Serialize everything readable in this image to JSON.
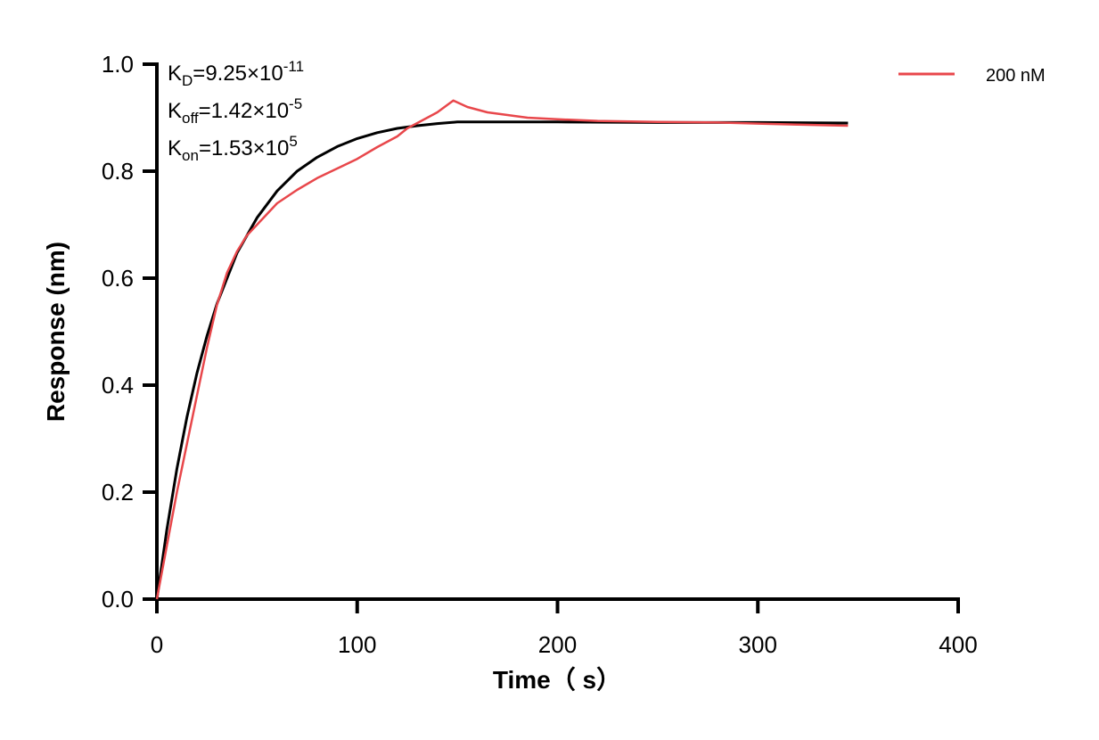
{
  "chart_data": {
    "type": "line",
    "xlabel": "Time（ s）",
    "ylabel": "Response (nm)",
    "xlim": [
      0,
      400
    ],
    "ylim": [
      0,
      1.0
    ],
    "xticks": [
      "0",
      "100",
      "200",
      "300",
      "400"
    ],
    "yticks": [
      "0.0",
      "0.2",
      "0.4",
      "0.6",
      "0.8",
      "1.0"
    ],
    "grid": false,
    "legend_position": "top-right",
    "annotations": {
      "kd": {
        "base": "K",
        "sub": "D",
        "text": "=9.25×10",
        "exp": "-11"
      },
      "koff": {
        "base": "K",
        "sub": "off",
        "text": "=1.42×10",
        "exp": "-5"
      },
      "kon": {
        "base": "K",
        "sub": "on",
        "text": "=1.53×10",
        "exp": "5"
      }
    },
    "series": [
      {
        "name": "200 nM",
        "color": "#e8474b",
        "x": [
          0,
          5,
          10,
          15,
          20,
          25,
          30,
          35,
          40,
          45,
          50,
          60,
          70,
          80,
          90,
          100,
          110,
          120,
          125,
          130,
          140,
          148,
          155,
          165,
          175,
          185,
          200,
          220,
          250,
          280,
          300,
          320,
          345
        ],
        "y": [
          0,
          0.1,
          0.2,
          0.29,
          0.38,
          0.47,
          0.55,
          0.61,
          0.65,
          0.68,
          0.7,
          0.74,
          0.765,
          0.787,
          0.805,
          0.823,
          0.845,
          0.865,
          0.88,
          0.89,
          0.91,
          0.932,
          0.92,
          0.91,
          0.905,
          0.9,
          0.897,
          0.894,
          0.892,
          0.891,
          0.889,
          0.887,
          0.885
        ]
      },
      {
        "color": "#000000",
        "x": [
          0,
          5,
          10,
          15,
          20,
          25,
          30,
          40,
          50,
          60,
          70,
          80,
          90,
          100,
          110,
          120,
          130,
          140,
          150,
          200,
          250,
          300,
          345
        ],
        "y": [
          0,
          0.13,
          0.244,
          0.34,
          0.422,
          0.492,
          0.552,
          0.647,
          0.713,
          0.763,
          0.8,
          0.826,
          0.846,
          0.861,
          0.872,
          0.88,
          0.885,
          0.889,
          0.892,
          0.892,
          0.891,
          0.891,
          0.89
        ]
      }
    ]
  }
}
